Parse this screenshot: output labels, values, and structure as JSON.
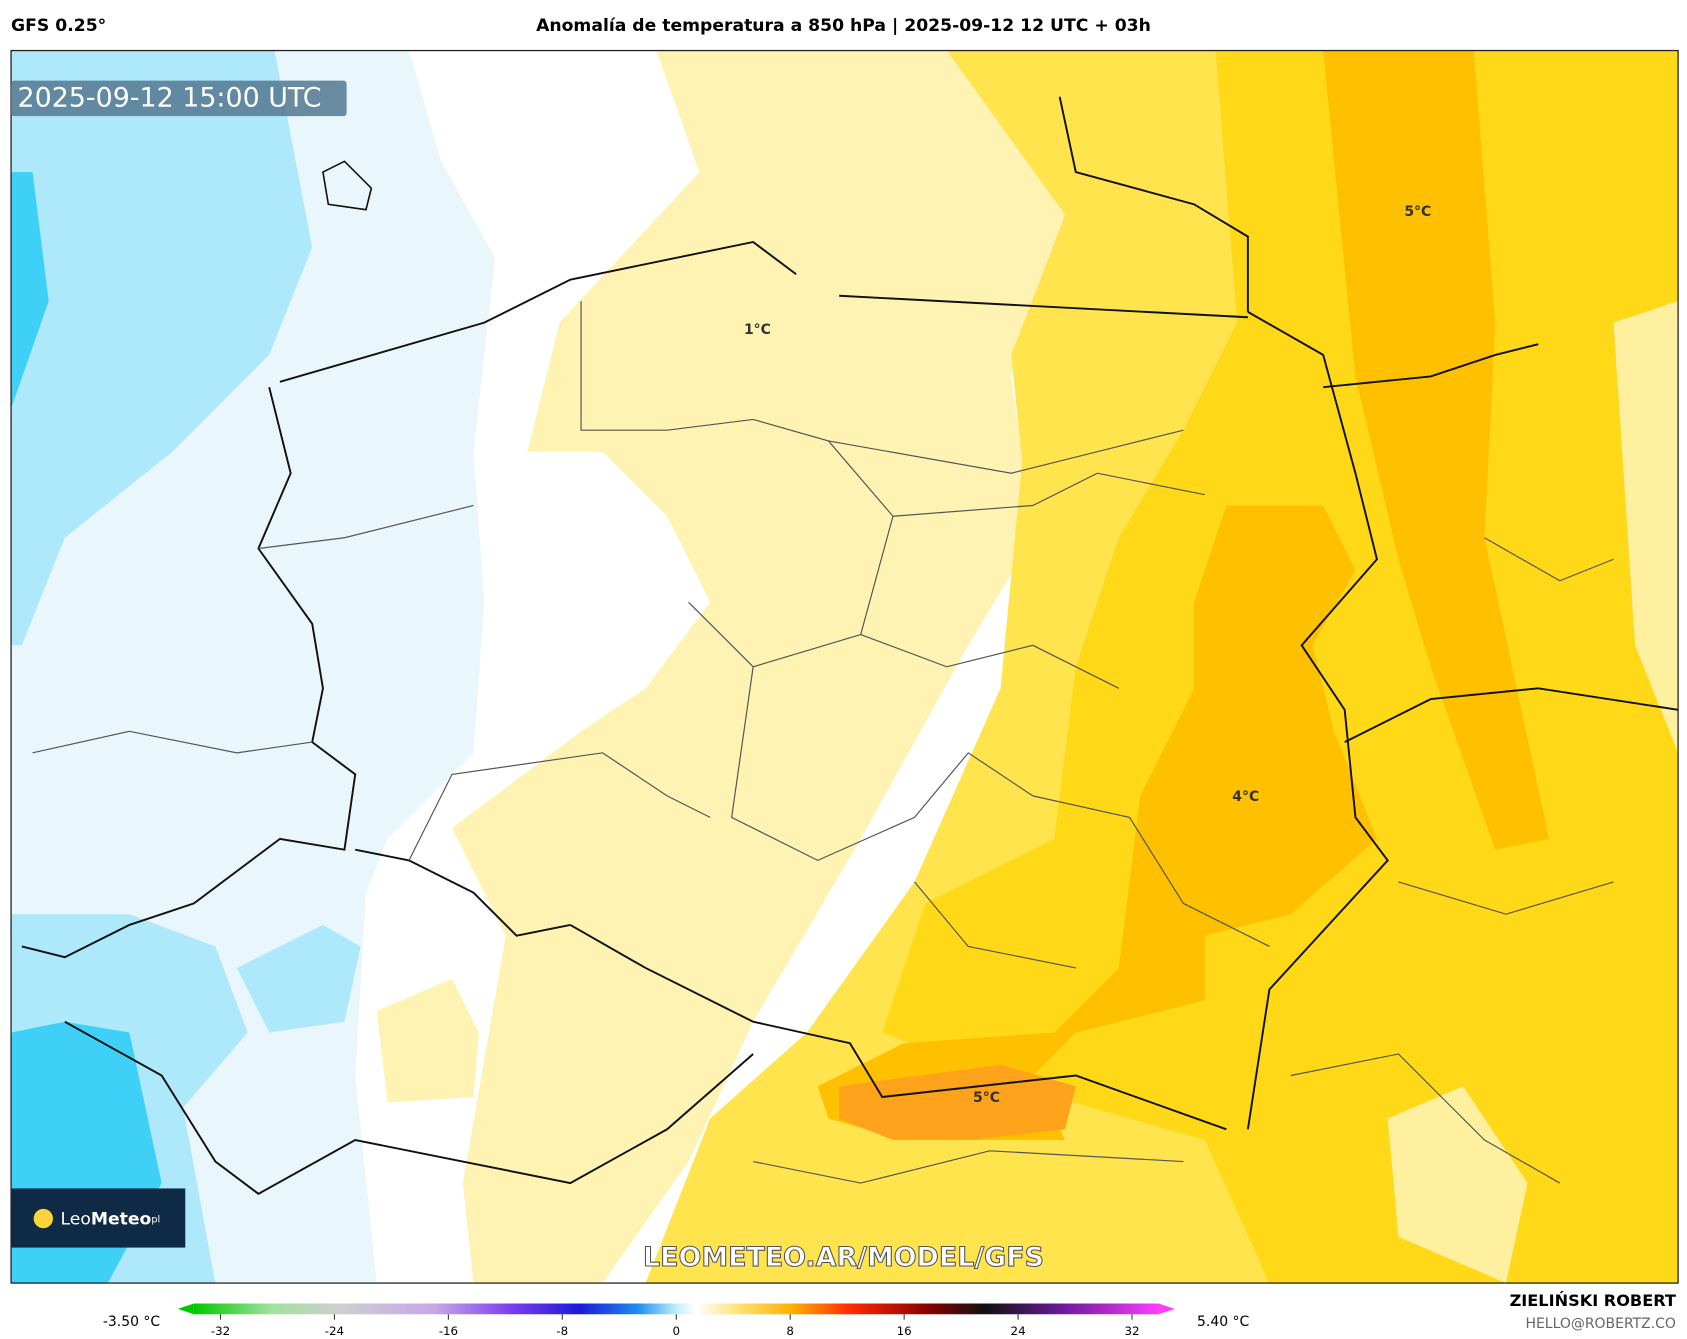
{
  "header": {
    "model": "GFS 0.25°",
    "title": "Anomalía de temperatura a 850 hPa | 2025-09-12 12 UTC + 03h"
  },
  "map": {
    "timestamp": "2025-09-12 15:00 UTC",
    "labels": [
      "1°C",
      "5°C",
      "4°C",
      "5°C"
    ],
    "watermark": "LEOMETEO.AR/MODEL/GFS",
    "logo": {
      "light": "Leo",
      "bold": "Meteo",
      "suffix": "pl"
    }
  },
  "colorbar": {
    "min_label": "-3.50 °C",
    "max_label": "5.40 °C",
    "lim": [
      -35,
      35
    ],
    "ticks": [
      -32,
      -24,
      -16,
      -8,
      0,
      8,
      16,
      24,
      32
    ]
  },
  "author": {
    "name": "ZIELIŃSKI ROBERT",
    "email": "HELLO@ROBERTZ.CO"
  }
}
